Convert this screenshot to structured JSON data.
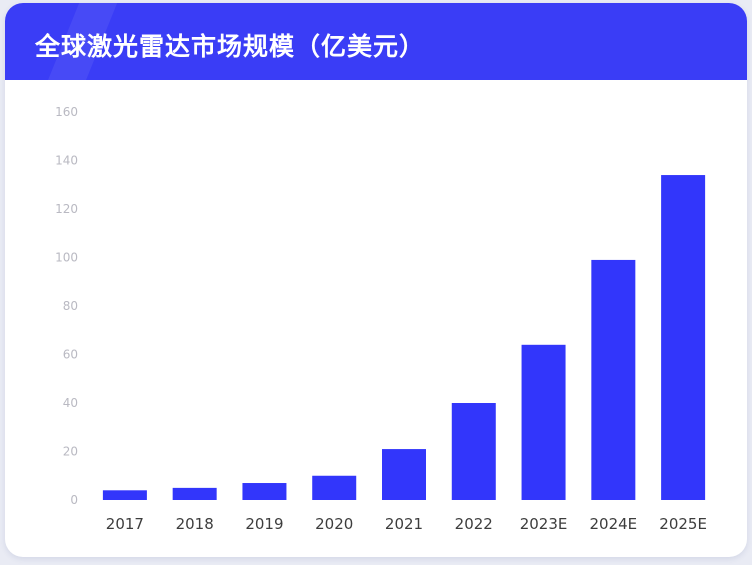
{
  "colors": {
    "header": "#3a3df6",
    "bar": "#3236fb",
    "background": "#e9ebf4"
  },
  "chart_data": {
    "type": "bar",
    "title": "全球激光雷达市场规模（亿美元）",
    "xlabel": "",
    "ylabel": "",
    "categories": [
      "2017",
      "2018",
      "2019",
      "2020",
      "2021",
      "2022",
      "2023E",
      "2024E",
      "2025E"
    ],
    "values": [
      4,
      5,
      7,
      10,
      21,
      40,
      64,
      99,
      134
    ],
    "ylim": [
      0,
      160
    ],
    "yticks": [
      "0",
      "20",
      "40",
      "60",
      "80",
      "100",
      "120",
      "140",
      "160"
    ],
    "grid": false,
    "legend": "none"
  }
}
